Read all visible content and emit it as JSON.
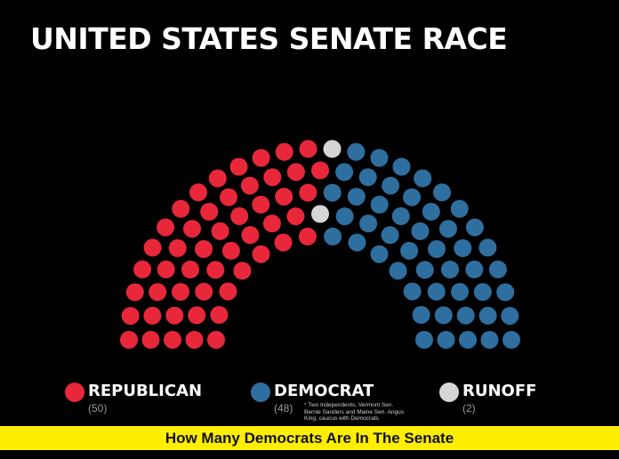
{
  "title": "UNITED STATES SENATE RACE",
  "legend": [
    {
      "id": "rep",
      "label": "REPUBLICAN",
      "count": "(50)",
      "color": "#e8283a"
    },
    {
      "id": "dem",
      "label": "DEMOCRAT",
      "count": "(48)",
      "color": "#2e6fa0"
    },
    {
      "id": "run",
      "label": "RUNOFF",
      "count": "(2)",
      "color": "#d6d6d6"
    }
  ],
  "footnote": "* Two Independents, Vermont Sen. Bernie Sanders and Maine Sen. Angus King, caucus with Democrats",
  "banner": "How Many Democrats Are In The Senate",
  "chart_data": {
    "type": "parliament",
    "title": "UNITED STATES SENATE RACE",
    "total_seats": 100,
    "series": [
      {
        "name": "REPUBLICAN",
        "seats": 50,
        "color": "#e8283a"
      },
      {
        "name": "DEMOCRAT",
        "seats": 48,
        "color": "#2e6fa0"
      },
      {
        "name": "RUNOFF",
        "seats": 2,
        "color": "#d6d6d6"
      }
    ]
  }
}
